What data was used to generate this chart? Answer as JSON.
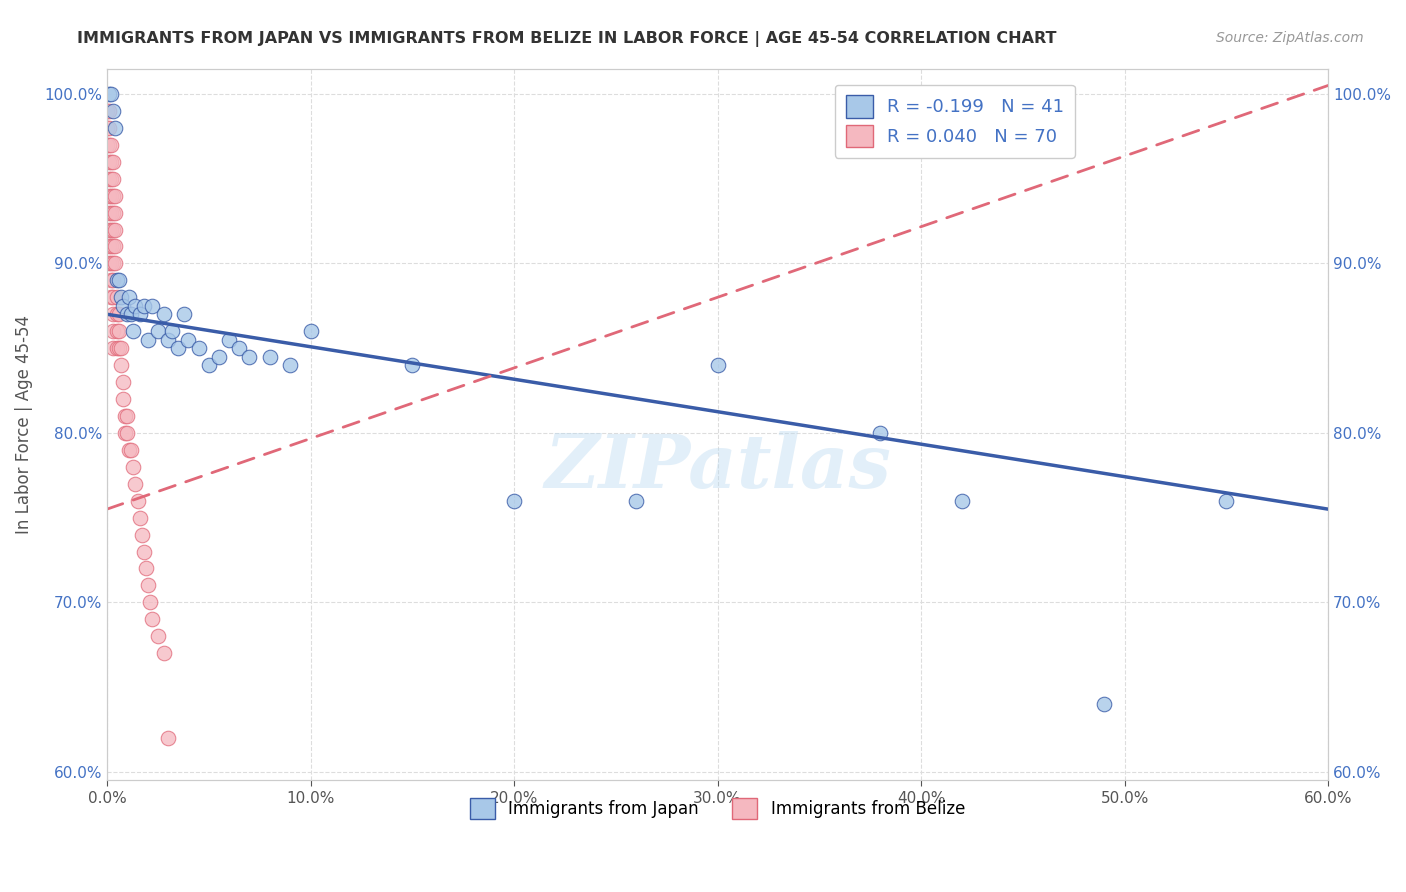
{
  "title": "IMMIGRANTS FROM JAPAN VS IMMIGRANTS FROM BELIZE IN LABOR FORCE | AGE 45-54 CORRELATION CHART",
  "source": "Source: ZipAtlas.com",
  "ylabel": "In Labor Force | Age 45-54",
  "legend_label_japan": "Immigrants from Japan",
  "legend_label_belize": "Immigrants from Belize",
  "r_japan": -0.199,
  "n_japan": 41,
  "r_belize": 0.04,
  "n_belize": 70,
  "xlim": [
    0.0,
    0.6
  ],
  "ylim": [
    0.595,
    1.015
  ],
  "xticks": [
    0.0,
    0.1,
    0.2,
    0.3,
    0.4,
    0.5,
    0.6
  ],
  "yticks": [
    0.6,
    0.7,
    0.8,
    0.9,
    1.0
  ],
  "color_japan": "#a8c8e8",
  "color_belize": "#f5b8c0",
  "line_japan": "#3a5ca8",
  "line_belize": "#e06878",
  "background": "#ffffff",
  "japan_x": [
    0.001,
    0.002,
    0.003,
    0.004,
    0.005,
    0.006,
    0.007,
    0.008,
    0.01,
    0.011,
    0.012,
    0.013,
    0.014,
    0.016,
    0.018,
    0.02,
    0.022,
    0.025,
    0.028,
    0.03,
    0.032,
    0.035,
    0.038,
    0.04,
    0.045,
    0.05,
    0.055,
    0.06,
    0.065,
    0.07,
    0.08,
    0.09,
    0.1,
    0.15,
    0.2,
    0.26,
    0.3,
    0.38,
    0.42,
    0.49,
    0.55
  ],
  "japan_y": [
    1.0,
    1.0,
    0.99,
    0.98,
    0.89,
    0.89,
    0.88,
    0.875,
    0.87,
    0.88,
    0.87,
    0.86,
    0.875,
    0.87,
    0.875,
    0.855,
    0.875,
    0.86,
    0.87,
    0.855,
    0.86,
    0.85,
    0.87,
    0.855,
    0.85,
    0.84,
    0.845,
    0.855,
    0.85,
    0.845,
    0.845,
    0.84,
    0.86,
    0.84,
    0.76,
    0.76,
    0.84,
    0.8,
    0.76,
    0.64,
    0.76
  ],
  "belize_x": [
    0.0,
    0.0,
    0.0,
    0.001,
    0.001,
    0.001,
    0.001,
    0.001,
    0.001,
    0.001,
    0.001,
    0.001,
    0.001,
    0.002,
    0.002,
    0.002,
    0.002,
    0.002,
    0.002,
    0.002,
    0.002,
    0.002,
    0.002,
    0.003,
    0.003,
    0.003,
    0.003,
    0.003,
    0.003,
    0.003,
    0.003,
    0.003,
    0.003,
    0.003,
    0.003,
    0.004,
    0.004,
    0.004,
    0.004,
    0.004,
    0.005,
    0.005,
    0.005,
    0.005,
    0.006,
    0.006,
    0.006,
    0.007,
    0.007,
    0.008,
    0.008,
    0.009,
    0.009,
    0.01,
    0.01,
    0.011,
    0.012,
    0.013,
    0.014,
    0.015,
    0.016,
    0.017,
    0.018,
    0.019,
    0.02,
    0.021,
    0.022,
    0.025,
    0.028,
    0.03
  ],
  "belize_y": [
    0.99,
    0.98,
    0.97,
    0.99,
    0.98,
    0.97,
    0.96,
    0.95,
    0.94,
    0.93,
    0.92,
    0.91,
    0.9,
    0.97,
    0.96,
    0.95,
    0.94,
    0.93,
    0.92,
    0.91,
    0.9,
    0.89,
    0.88,
    0.96,
    0.95,
    0.94,
    0.93,
    0.92,
    0.91,
    0.9,
    0.89,
    0.88,
    0.87,
    0.86,
    0.85,
    0.94,
    0.93,
    0.92,
    0.91,
    0.9,
    0.88,
    0.87,
    0.86,
    0.85,
    0.87,
    0.86,
    0.85,
    0.85,
    0.84,
    0.83,
    0.82,
    0.81,
    0.8,
    0.81,
    0.8,
    0.79,
    0.79,
    0.78,
    0.77,
    0.76,
    0.75,
    0.74,
    0.73,
    0.72,
    0.71,
    0.7,
    0.69,
    0.68,
    0.67,
    0.62
  ],
  "japan_line_x": [
    0.0,
    0.6
  ],
  "japan_line_y": [
    0.87,
    0.755
  ],
  "belize_line_x": [
    0.0,
    0.6
  ],
  "belize_line_y": [
    0.755,
    1.005
  ]
}
